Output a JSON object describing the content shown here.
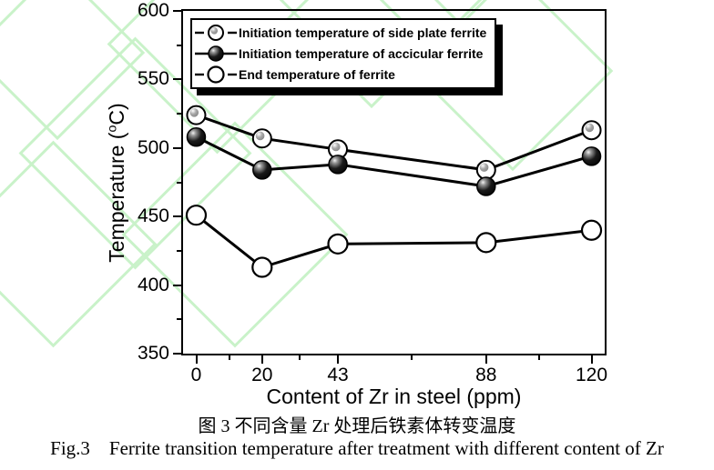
{
  "figure": {
    "caption_zh": "图 3 不同含量 Zr 处理后铁素体转变温度",
    "caption_en": "Fig.3    Ferrite transition temperature after treatment with different content of Zr"
  },
  "colors": {
    "watermark": "#c9f2c9",
    "axis": "#000000",
    "series_line": "#000000",
    "legend_shadow": "#000000"
  },
  "chart_data": {
    "type": "line",
    "title": "",
    "xlabel": "Content of Zr in steel (ppm)",
    "ylabel": "Temperature (°C)",
    "ylabel_parts": [
      "Temperature (",
      "o",
      "C)"
    ],
    "x": [
      0,
      20,
      43,
      88,
      120
    ],
    "x_tick_labels": [
      "0",
      "20",
      "43",
      "88",
      "120"
    ],
    "x_minor_ticks": [
      10,
      31.5,
      65.5,
      104
    ],
    "xlim": [
      -4,
      124
    ],
    "y_ticks": [
      350,
      400,
      450,
      500,
      550,
      600
    ],
    "y_minor_ticks": [
      375,
      425,
      475,
      525,
      575
    ],
    "ylim": [
      350,
      600
    ],
    "grid": false,
    "legend_position": "top-left",
    "series": [
      {
        "name": "Initiation temperature of side plate ferrite",
        "marker": "sphere-gray",
        "line": "solid",
        "values": [
          524,
          507,
          499,
          484,
          513
        ]
      },
      {
        "name": "Initiation temperature of accicular ferrite",
        "marker": "sphere-black",
        "line": "solid",
        "values": [
          508,
          484,
          488,
          472,
          494
        ]
      },
      {
        "name": "End temperature of ferrite",
        "marker": "circle-open",
        "line": "solid",
        "values": [
          451,
          413,
          430,
          431,
          440
        ]
      }
    ]
  }
}
